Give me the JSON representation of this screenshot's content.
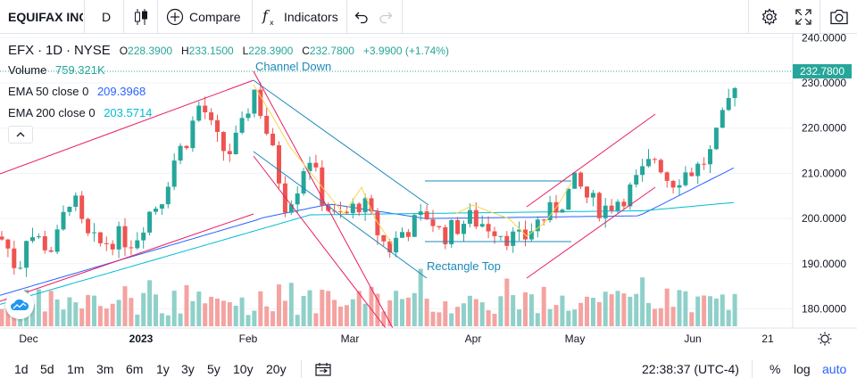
{
  "toolbar": {
    "symbol": "EQUIFAX INC",
    "interval": "D",
    "compare_label": "Compare",
    "indicators_label": "Indicators"
  },
  "legend": {
    "ticker": "EFX",
    "interval": "1D",
    "exchange": "NYSE",
    "open_key": "O",
    "open": "228.3900",
    "high_key": "H",
    "high": "233.1500",
    "low_key": "L",
    "low": "228.3900",
    "close_key": "C",
    "close": "232.7800",
    "change": "+3.9900 (+1.74%)",
    "volume_label": "Volume",
    "volume": "759.321K",
    "ema50_label": "EMA 50 close 0",
    "ema50": "209.3968",
    "ema200_label": "EMA 200 close 0",
    "ema200": "203.5714"
  },
  "annotations": {
    "channel": "Channel Down",
    "rectangle": "Rectangle Top"
  },
  "price_axis": [
    "240.0000",
    "230.0000",
    "220.0000",
    "210.0000",
    "200.0000",
    "190.0000",
    "180.0000"
  ],
  "last_price": "232.7800",
  "time_axis": [
    "Dec",
    "2023",
    "Feb",
    "Mar",
    "Apr",
    "May",
    "Jun",
    "21"
  ],
  "ranges": [
    "1d",
    "5d",
    "1m",
    "3m",
    "6m",
    "1y",
    "3y",
    "5y",
    "10y",
    "20y"
  ],
  "clock": "22:38:37 (UTC-4)",
  "scale_options": {
    "percent": "%",
    "log": "log",
    "auto": "auto"
  },
  "colors": {
    "up": "#26a69a",
    "down": "#ef5350",
    "ema50": "#2962ff",
    "ema200": "#00bcd4",
    "drawing": "#e91e63",
    "channel": "#1e88b8"
  }
}
